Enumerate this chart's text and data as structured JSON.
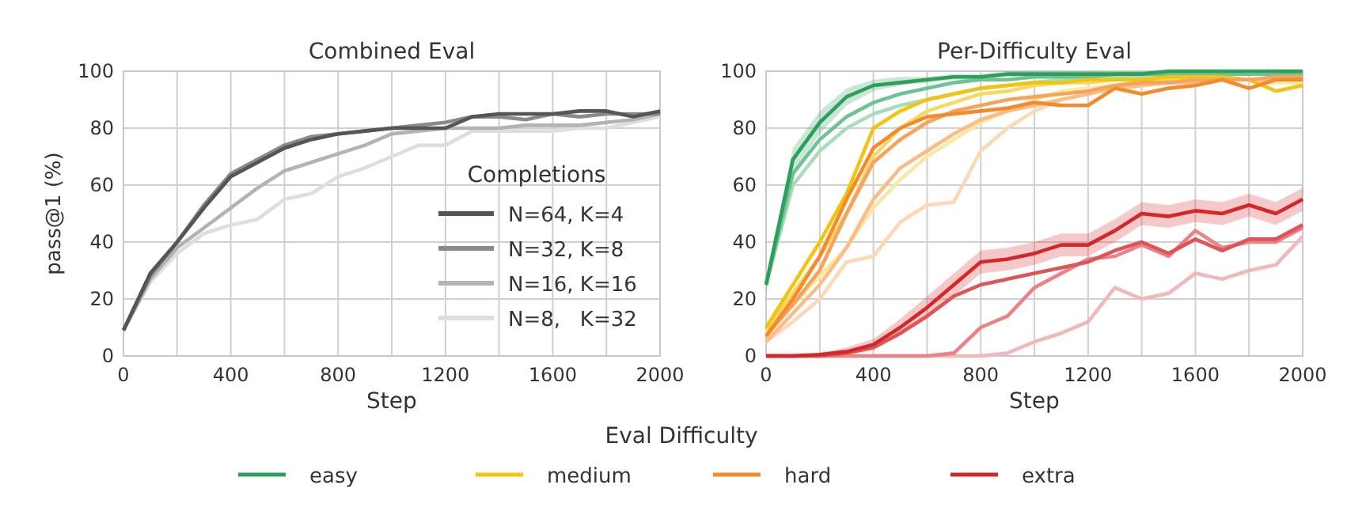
{
  "chart_data": [
    {
      "type": "line",
      "title": "Combined Eval",
      "xlabel": "Step",
      "ylabel": "pass@1 (%)",
      "legend_title": "Completions",
      "legend": "bottom right",
      "grid": true,
      "x": [
        0,
        100,
        200,
        300,
        400,
        500,
        600,
        700,
        800,
        900,
        1000,
        1100,
        1200,
        1300,
        1400,
        1500,
        1600,
        1700,
        1800,
        1900,
        2000
      ],
      "xlim": [
        0,
        2000
      ],
      "xticks": [
        0,
        {
          "value": 200,
          "label": null
        },
        400,
        {
          "value": 600,
          "label": null
        },
        800,
        {
          "value": 1000,
          "label": null
        },
        1200,
        {
          "value": 1400,
          "label": null
        },
        1600,
        {
          "value": 1800,
          "label": null
        },
        2000
      ],
      "ylim": [
        0,
        100
      ],
      "yticks": [
        0,
        20,
        40,
        60,
        80,
        100
      ],
      "series": [
        {
          "name": "N=8,   K=32",
          "color": "#dedede",
          "values": [
            9,
            26,
            36,
            43,
            46,
            48,
            55,
            57,
            63,
            66,
            70,
            74,
            74,
            79,
            79,
            79,
            79,
            80,
            80,
            82,
            84
          ]
        },
        {
          "name": "N=16, K=16",
          "color": "#b3b3b3",
          "values": [
            9,
            27,
            38,
            45,
            52,
            59,
            65,
            68,
            71,
            74,
            78,
            79,
            80,
            80,
            80,
            81,
            81,
            81,
            82,
            83,
            85
          ]
        },
        {
          "name": "N=32, K=8",
          "color": "#8a8a8a",
          "values": [
            9,
            28,
            40,
            53,
            64,
            69,
            74,
            77,
            78,
            79,
            80,
            81,
            82,
            84,
            84,
            83,
            85,
            84,
            85,
            85,
            85
          ]
        },
        {
          "name": "N=64, K=4",
          "color": "#555555",
          "values": [
            9,
            29,
            40,
            52,
            63,
            68,
            73,
            76,
            78,
            79,
            80,
            80,
            80,
            84,
            85,
            85,
            85,
            86,
            86,
            84,
            86
          ]
        }
      ]
    },
    {
      "type": "line",
      "title": "Per-Difficulty Eval",
      "xlabel": "Step",
      "legend_title": "Eval Difficulty",
      "legend": "bottom",
      "grid": true,
      "x": [
        0,
        100,
        200,
        300,
        400,
        500,
        600,
        700,
        800,
        900,
        1000,
        1100,
        1200,
        1300,
        1400,
        1500,
        1600,
        1700,
        1800,
        1900,
        2000
      ],
      "xlim": [
        0,
        2000
      ],
      "xticks": [
        0,
        {
          "value": 200,
          "label": null
        },
        400,
        {
          "value": 600,
          "label": null
        },
        800,
        {
          "value": 1000,
          "label": null
        },
        1200,
        {
          "value": 1400,
          "label": null
        },
        1600,
        {
          "value": 1800,
          "label": null
        },
        2000
      ],
      "ylim": [
        0,
        100
      ],
      "yticks": [
        0,
        20,
        40,
        60,
        80,
        100
      ],
      "series": [
        {
          "color": "#a9dcbd",
          "values": [
            25,
            60,
            72,
            80,
            85,
            88,
            90,
            92,
            94,
            95,
            96,
            97,
            97,
            98,
            98,
            98,
            99,
            99,
            99,
            99,
            99
          ]
        },
        {
          "color": "#6fc294",
          "values": [
            25,
            64,
            76,
            84,
            89,
            92,
            94,
            96,
            97,
            97,
            98,
            98,
            98,
            99,
            99,
            99,
            99,
            99,
            99,
            99,
            99
          ]
        },
        {
          "name": "easy",
          "color": "#2ca05a",
          "values": [
            25,
            69,
            82,
            91,
            95,
            96,
            97,
            98,
            98,
            99,
            99,
            99,
            99,
            99,
            99,
            100,
            100,
            100,
            100,
            100,
            100
          ],
          "lower": [
            22,
            64,
            78,
            88,
            93,
            95,
            96,
            97,
            97,
            98,
            98,
            98,
            98,
            98,
            98,
            99,
            99,
            99,
            99,
            99,
            99
          ],
          "upper": [
            28,
            73,
            86,
            94,
            97,
            98,
            98,
            99,
            99,
            100,
            100,
            100,
            100,
            100,
            100,
            100,
            100,
            100,
            100,
            100,
            100
          ]
        },
        {
          "color": "#fae8a5",
          "values": [
            8,
            18,
            28,
            38,
            52,
            62,
            70,
            76,
            82,
            86,
            90,
            93,
            94,
            95,
            96,
            96,
            97,
            97,
            97,
            96,
            96
          ]
        },
        {
          "color": "#f6d865",
          "values": [
            9,
            22,
            35,
            50,
            70,
            80,
            86,
            89,
            92,
            93,
            95,
            96,
            96,
            97,
            97,
            97,
            98,
            97,
            97,
            97,
            97
          ]
        },
        {
          "name": "medium",
          "color": "#f2c40f",
          "values": [
            10,
            25,
            40,
            57,
            80,
            86,
            90,
            92,
            94,
            95,
            96,
            96,
            97,
            97,
            97,
            98,
            98,
            98,
            97,
            93,
            95
          ]
        },
        {
          "color": "#fdd8b6",
          "values": [
            5,
            12,
            20,
            33,
            35,
            47,
            53,
            54,
            72,
            80,
            86,
            90,
            92,
            94,
            95,
            96,
            97,
            97,
            97,
            97,
            98
          ]
        },
        {
          "color": "#fbbc86",
          "values": [
            5,
            15,
            25,
            38,
            55,
            66,
            72,
            78,
            83,
            86,
            88,
            90,
            92,
            94,
            95,
            96,
            96,
            97,
            97,
            97,
            98
          ]
        },
        {
          "color": "#f8a35a",
          "values": [
            7,
            18,
            30,
            50,
            68,
            76,
            82,
            86,
            88,
            90,
            91,
            92,
            93,
            95,
            96,
            96,
            97,
            97,
            97,
            98,
            98
          ]
        },
        {
          "name": "hard",
          "color": "#f58a2a",
          "values": [
            7,
            20,
            35,
            55,
            73,
            80,
            84,
            85,
            86,
            87,
            89,
            88,
            88,
            94,
            92,
            94,
            95,
            97,
            94,
            97,
            97
          ]
        },
        {
          "color": "#f2b8b9",
          "values": [
            0,
            0,
            0,
            0,
            0,
            0,
            0,
            0,
            0,
            1,
            5,
            8,
            12,
            24,
            20,
            22,
            29,
            27,
            30,
            32,
            42
          ]
        },
        {
          "color": "#e88486",
          "values": [
            0,
            0,
            0,
            0,
            0,
            0,
            0,
            1,
            10,
            14,
            24,
            29,
            34,
            35,
            39,
            35,
            44,
            38,
            40,
            40,
            45
          ]
        },
        {
          "color": "#dd5557",
          "values": [
            0,
            0,
            0,
            1,
            3,
            8,
            14,
            21,
            25,
            27,
            29,
            31,
            33,
            37,
            40,
            36,
            41,
            37,
            41,
            41,
            46
          ]
        },
        {
          "name": "extra",
          "color": "#d62728",
          "values": [
            0,
            0,
            0.5,
            1.5,
            4,
            10,
            17,
            25,
            33,
            34,
            36,
            39,
            39,
            44,
            50,
            49,
            51,
            50,
            53,
            50,
            55
          ],
          "lower": [
            0,
            0,
            0,
            0.5,
            2,
            7,
            13,
            21,
            29,
            30,
            32,
            35,
            35,
            40,
            46,
            45,
            47,
            46,
            49,
            46,
            51
          ],
          "upper": [
            0,
            0,
            1,
            3,
            6,
            13,
            21,
            29,
            37,
            38,
            40,
            43,
            43,
            48,
            54,
            53,
            55,
            54,
            57,
            54,
            59
          ]
        }
      ]
    }
  ]
}
